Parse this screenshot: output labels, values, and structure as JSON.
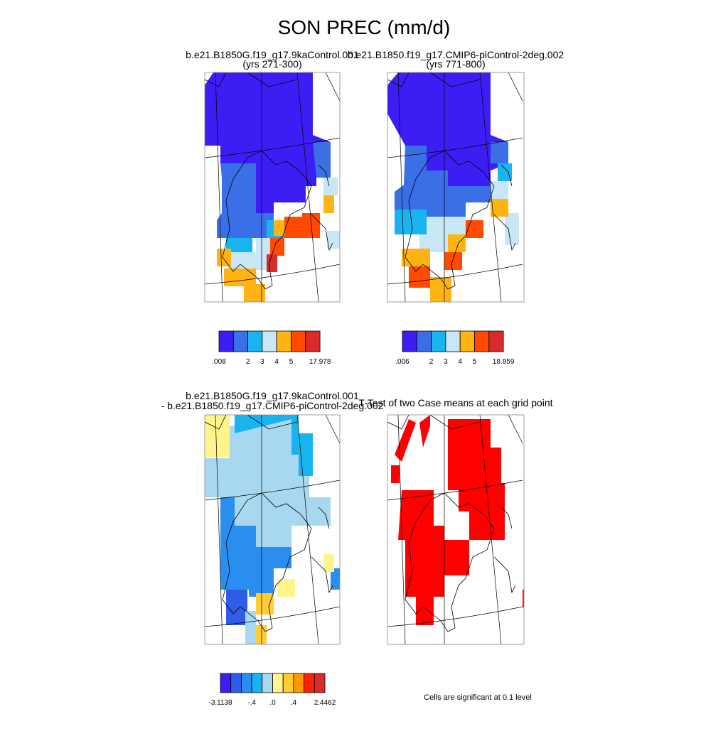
{
  "title": "SON PREC (mm/d)",
  "panels": [
    {
      "title": "b.e21.B1850G.f19_g17.9kaControl.001",
      "subtitle": "(yrs 271-300)"
    },
    {
      "title": "b.e21.B1850.f19_g17.CMIP6-piControl-2deg.002",
      "subtitle": "(yrs 771-800)"
    },
    {
      "title": "b.e21.B1850G.f19_g17.9kaControl.001",
      "subtitle": "- b.e21.B1850.f19_g17.CMIP6-piControl-2deg.002"
    },
    {
      "title": "T-Test of two Case means at each grid point",
      "note": "Cells are significant at 0.1 level"
    }
  ],
  "colorbars": [
    {
      "colors": [
        "#3c1ef5",
        "#3a6fe6",
        "#18b4f0",
        "#c8e6f4",
        "#ffb414",
        "#ff4a00",
        "#d82c2c"
      ],
      "labels": [
        ".008",
        "2",
        "3",
        "4",
        "5",
        "17.978"
      ]
    },
    {
      "colors": [
        "#3c1ef5",
        "#3a6fe6",
        "#18b4f0",
        "#c8e6f4",
        "#ffb414",
        "#ff4a00",
        "#d82c2c"
      ],
      "labels": [
        ".006",
        "2",
        "3",
        "4",
        "5",
        "18.859"
      ]
    },
    {
      "colors": [
        "#3c1ef5",
        "#2f5de8",
        "#2a8ef0",
        "#18b4f0",
        "#a8d8f0",
        "#fff58c",
        "#ffcc33",
        "#ff9900",
        "#ff2200",
        "#d82c2c"
      ],
      "labels": [
        "-3.1138",
        "-.4",
        ".0",
        ".4",
        "2.4462"
      ]
    }
  ]
}
